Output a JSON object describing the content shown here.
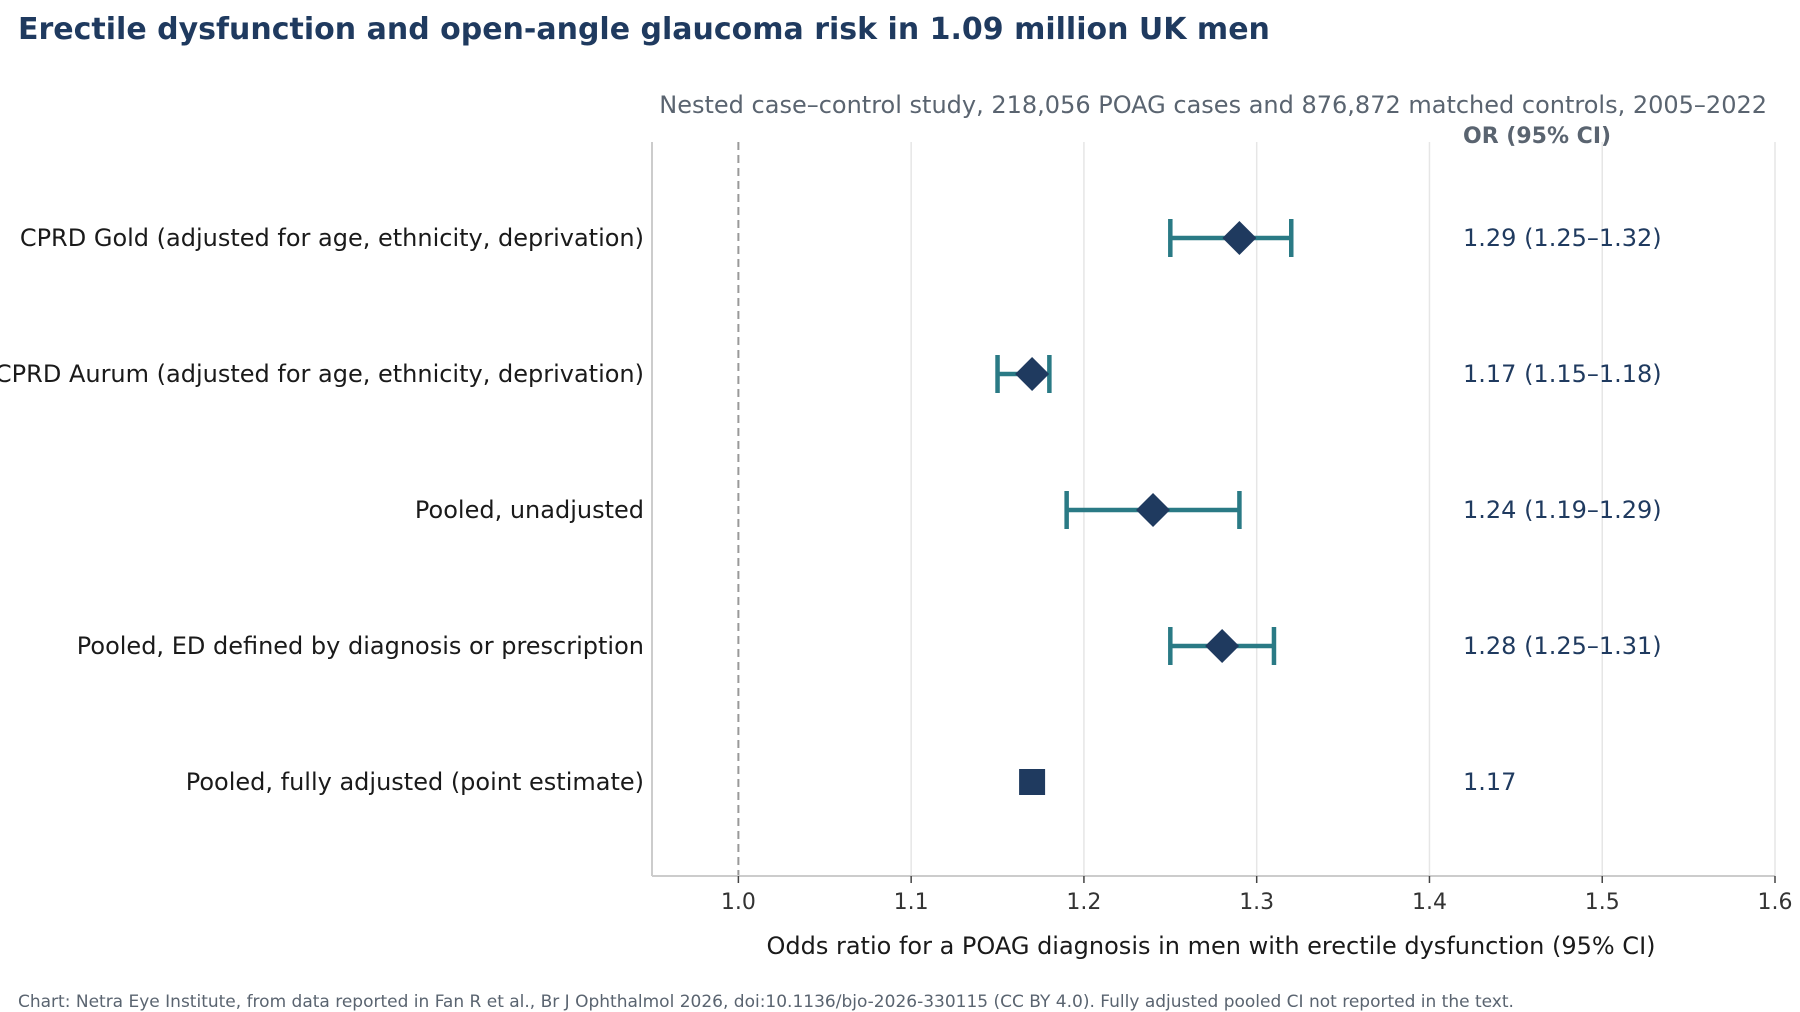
{
  "chart_data": {
    "type": "forest",
    "title": "Erectile dysfunction and open-angle glaucoma risk in 1.09 million UK men",
    "subtitle": "Nested case–control study, 218,056 POAG cases and 876,872 matched controls, 2005–2022",
    "xlabel": "Odds ratio for a POAG diagnosis in men with erectile dysfunction (95% CI)",
    "column_header": "OR (95% CI)",
    "xlim": [
      0.95,
      1.6
    ],
    "xticks": [
      1.0,
      1.1,
      1.2,
      1.3,
      1.4,
      1.5,
      1.6
    ],
    "xtick_labels": [
      "1.0",
      "1.1",
      "1.2",
      "1.3",
      "1.4",
      "1.5",
      "1.6"
    ],
    "reference_line": 1.0,
    "grid": "vertical",
    "rows": [
      {
        "label": "CPRD Gold (adjusted for age, ethnicity, deprivation)",
        "or": 1.29,
        "lower": 1.25,
        "upper": 1.32,
        "text": "1.29 (1.25–1.32)",
        "marker": "diamond"
      },
      {
        "label": "CPRD Aurum (adjusted for age, ethnicity, deprivation)",
        "or": 1.17,
        "lower": 1.15,
        "upper": 1.18,
        "text": "1.17 (1.15–1.18)",
        "marker": "diamond"
      },
      {
        "label": "Pooled, unadjusted",
        "or": 1.24,
        "lower": 1.19,
        "upper": 1.29,
        "text": "1.24 (1.19–1.29)",
        "marker": "diamond"
      },
      {
        "label": "Pooled, ED defined by diagnosis or prescription",
        "or": 1.28,
        "lower": 1.25,
        "upper": 1.31,
        "text": "1.28 (1.25–1.31)",
        "marker": "diamond"
      },
      {
        "label": "Pooled, fully adjusted (point estimate)",
        "or": 1.17,
        "lower": null,
        "upper": null,
        "text": "1.17",
        "marker": "square"
      }
    ],
    "colors": {
      "marker": "#1f3a5f",
      "ci": "#2a7a85",
      "grid": "#e6e6e6",
      "axis": "#cccccc",
      "reference": "#999999"
    }
  },
  "footnote": "Chart: Netra Eye Institute, from data reported in Fan R et al., Br J Ophthalmol 2026, doi:10.1136/bjo-2026-330115 (CC BY 4.0). Fully adjusted pooled CI not reported in the text."
}
